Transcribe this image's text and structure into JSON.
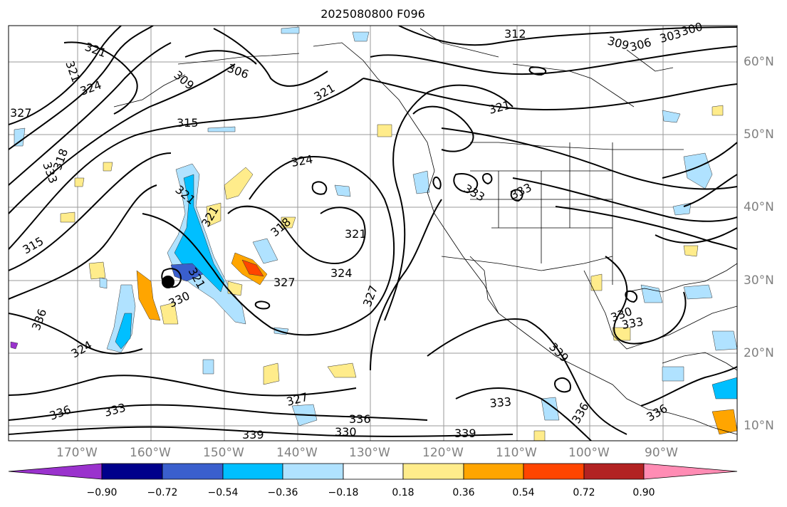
{
  "title": "2025080800 F096",
  "map": {
    "lon_ticks": [
      "170°W",
      "160°W",
      "150°W",
      "140°W",
      "130°W",
      "120°W",
      "110°W",
      "100°W",
      "90°W"
    ],
    "lat_ticks": [
      "60°N",
      "50°N",
      "40°N",
      "30°N",
      "20°N",
      "10°N"
    ],
    "contour_labels": [
      "321",
      "321",
      "324",
      "327",
      "306",
      "309",
      "315",
      "318",
      "333",
      "312",
      "321",
      "309",
      "306",
      "303",
      "300",
      "321",
      "324",
      "333",
      "333",
      "321",
      "321",
      "315",
      "321",
      "318",
      "321",
      "324",
      "327",
      "330",
      "336",
      "324",
      "327",
      "336",
      "333",
      "339",
      "330",
      "339",
      "336",
      "327",
      "333",
      "339",
      "336",
      "330",
      "333",
      "336"
    ],
    "colorbar": {
      "ticks": [
        "−0.90",
        "−0.72",
        "−0.54",
        "−0.36",
        "−0.18",
        "0.18",
        "0.36",
        "0.54",
        "0.72",
        "0.90"
      ],
      "colors": [
        "#9a32cd",
        "#00008b",
        "#3a5fcd",
        "#00bfff",
        "#b0e2ff",
        "#ffffff",
        "#ffec8b",
        "#ffa500",
        "#ff4500",
        "#b22222",
        "#ff8cb4"
      ]
    }
  }
}
